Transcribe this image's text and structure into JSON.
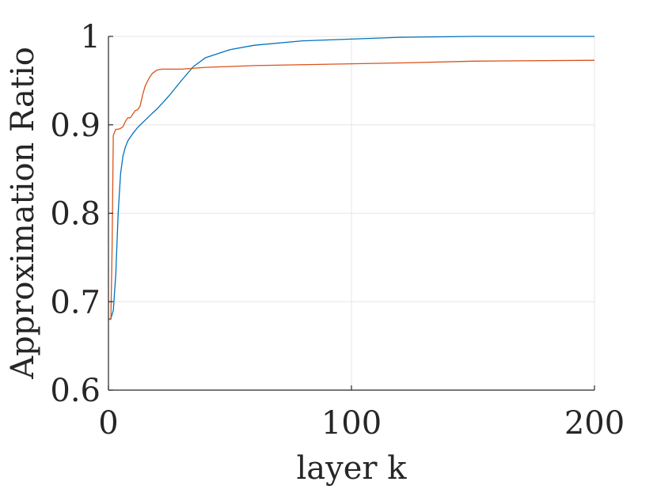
{
  "chart_data": {
    "type": "line",
    "title": "",
    "xlabel": "layer k",
    "ylabel": "Approximation Ratio",
    "xlim": [
      0,
      200
    ],
    "ylim": [
      0.6,
      1
    ],
    "xticks": [
      0,
      100,
      200
    ],
    "xtick_labels": [
      "0",
      "100",
      "200"
    ],
    "yticks": [
      0.6,
      0.7,
      0.8,
      0.9,
      1
    ],
    "ytick_labels": [
      "0.6",
      "0.7",
      "0.8",
      "0.9",
      "1"
    ],
    "grid": true,
    "series": [
      {
        "color": "#0072BD",
        "x": [
          0,
          1,
          2,
          3,
          4,
          5,
          6,
          7,
          8,
          10,
          12,
          15,
          18,
          20,
          25,
          30,
          35,
          40,
          50,
          60,
          80,
          100,
          120,
          150,
          200
        ],
        "y": [
          0.68,
          0.681,
          0.69,
          0.73,
          0.8,
          0.845,
          0.865,
          0.875,
          0.882,
          0.89,
          0.897,
          0.905,
          0.913,
          0.918,
          0.933,
          0.95,
          0.966,
          0.976,
          0.985,
          0.99,
          0.995,
          0.997,
          0.999,
          1.0,
          1.0
        ]
      },
      {
        "color": "#D95319",
        "x": [
          0,
          0.5,
          1,
          1.5,
          2,
          3,
          4,
          5,
          6,
          7,
          8,
          9,
          10,
          11,
          12,
          13,
          14,
          15,
          16,
          17,
          18,
          19,
          20,
          22,
          25,
          30,
          35,
          40,
          50,
          60,
          80,
          100,
          120,
          150,
          200
        ],
        "y": [
          0.68,
          0.68,
          0.68,
          0.76,
          0.888,
          0.895,
          0.895,
          0.896,
          0.898,
          0.904,
          0.908,
          0.908,
          0.912,
          0.916,
          0.917,
          0.921,
          0.933,
          0.943,
          0.949,
          0.954,
          0.958,
          0.96,
          0.962,
          0.963,
          0.963,
          0.963,
          0.964,
          0.965,
          0.966,
          0.967,
          0.968,
          0.969,
          0.97,
          0.972,
          0.973
        ]
      }
    ]
  }
}
